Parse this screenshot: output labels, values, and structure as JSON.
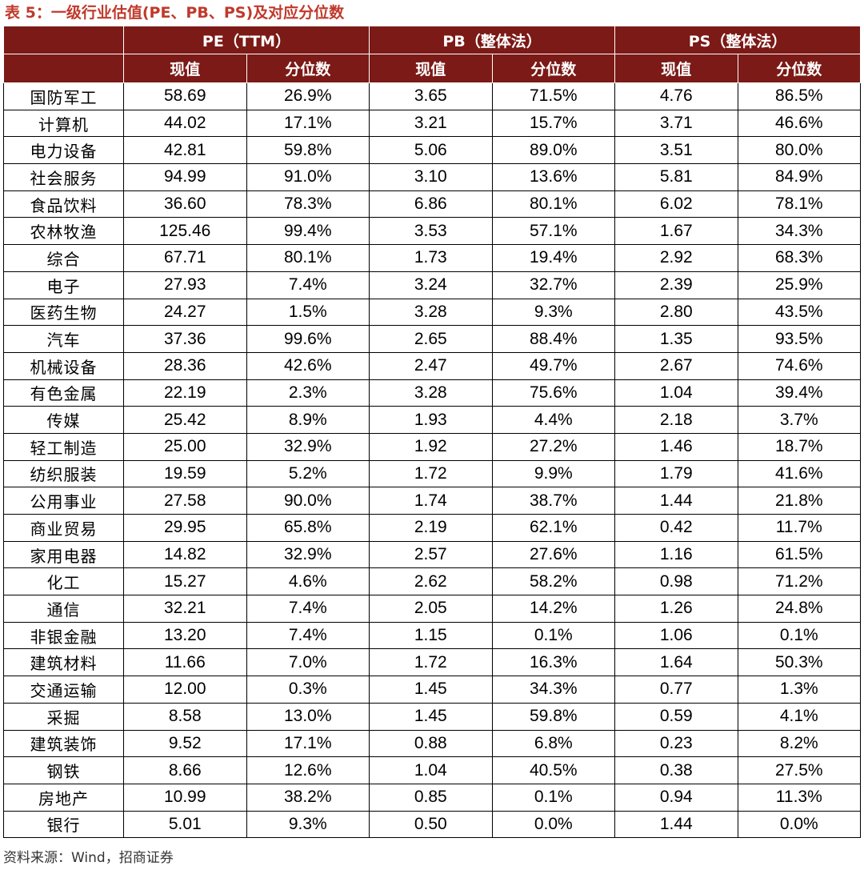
{
  "title": "表 5：一级行业估值(PE、PB、PS)及对应分位数",
  "header": {
    "groups": [
      "PE（TTM）",
      "PB（整体法）",
      "PS（整体法）"
    ],
    "sub": [
      "现值",
      "分位数",
      "现值",
      "分位数",
      "现值",
      "分位数"
    ]
  },
  "rows": [
    [
      "国防军工",
      "58.69",
      "26.9%",
      "3.65",
      "71.5%",
      "4.76",
      "86.5%"
    ],
    [
      "计算机",
      "44.02",
      "17.1%",
      "3.21",
      "15.7%",
      "3.71",
      "46.6%"
    ],
    [
      "电力设备",
      "42.81",
      "59.8%",
      "5.06",
      "89.0%",
      "3.51",
      "80.0%"
    ],
    [
      "社会服务",
      "94.99",
      "91.0%",
      "3.10",
      "13.6%",
      "5.81",
      "84.9%"
    ],
    [
      "食品饮料",
      "36.60",
      "78.3%",
      "6.86",
      "80.1%",
      "6.02",
      "78.1%"
    ],
    [
      "农林牧渔",
      "125.46",
      "99.4%",
      "3.53",
      "57.1%",
      "1.67",
      "34.3%"
    ],
    [
      "综合",
      "67.71",
      "80.1%",
      "1.73",
      "19.4%",
      "2.92",
      "68.3%"
    ],
    [
      "电子",
      "27.93",
      "7.4%",
      "3.24",
      "32.7%",
      "2.39",
      "25.9%"
    ],
    [
      "医药生物",
      "24.27",
      "1.5%",
      "3.28",
      "9.3%",
      "2.80",
      "43.5%"
    ],
    [
      "汽车",
      "37.36",
      "99.6%",
      "2.65",
      "88.4%",
      "1.35",
      "93.5%"
    ],
    [
      "机械设备",
      "28.36",
      "42.6%",
      "2.47",
      "49.7%",
      "2.67",
      "74.6%"
    ],
    [
      "有色金属",
      "22.19",
      "2.3%",
      "3.28",
      "75.6%",
      "1.04",
      "39.4%"
    ],
    [
      "传媒",
      "25.42",
      "8.9%",
      "1.93",
      "4.4%",
      "2.18",
      "3.7%"
    ],
    [
      "轻工制造",
      "25.00",
      "32.9%",
      "1.92",
      "27.2%",
      "1.46",
      "18.7%"
    ],
    [
      "纺织服装",
      "19.59",
      "5.2%",
      "1.72",
      "9.9%",
      "1.79",
      "41.6%"
    ],
    [
      "公用事业",
      "27.58",
      "90.0%",
      "1.74",
      "38.7%",
      "1.44",
      "21.8%"
    ],
    [
      "商业贸易",
      "29.95",
      "65.8%",
      "2.19",
      "62.1%",
      "0.42",
      "11.7%"
    ],
    [
      "家用电器",
      "14.82",
      "32.9%",
      "2.57",
      "27.6%",
      "1.16",
      "61.5%"
    ],
    [
      "化工",
      "15.27",
      "4.6%",
      "2.62",
      "58.2%",
      "0.98",
      "71.2%"
    ],
    [
      "通信",
      "32.21",
      "7.4%",
      "2.05",
      "14.2%",
      "1.26",
      "24.8%"
    ],
    [
      "非银金融",
      "13.20",
      "7.4%",
      "1.15",
      "0.1%",
      "1.06",
      "0.1%"
    ],
    [
      "建筑材料",
      "11.66",
      "7.0%",
      "1.72",
      "16.3%",
      "1.64",
      "50.3%"
    ],
    [
      "交通运输",
      "12.00",
      "0.3%",
      "1.45",
      "34.3%",
      "0.77",
      "1.3%"
    ],
    [
      "采掘",
      "8.58",
      "13.0%",
      "1.45",
      "59.8%",
      "0.59",
      "4.1%"
    ],
    [
      "建筑装饰",
      "9.52",
      "17.1%",
      "0.88",
      "6.8%",
      "0.23",
      "8.2%"
    ],
    [
      "钢铁",
      "8.66",
      "12.6%",
      "1.04",
      "40.5%",
      "0.38",
      "27.5%"
    ],
    [
      "房地产",
      "10.99",
      "38.2%",
      "0.85",
      "0.1%",
      "0.94",
      "11.3%"
    ],
    [
      "银行",
      "5.01",
      "9.3%",
      "0.50",
      "0.0%",
      "1.44",
      "0.0%"
    ]
  ],
  "source": "资料来源：Wind，招商证券",
  "colors": {
    "header_bg": "#7b1a16",
    "title": "#c0392b"
  }
}
